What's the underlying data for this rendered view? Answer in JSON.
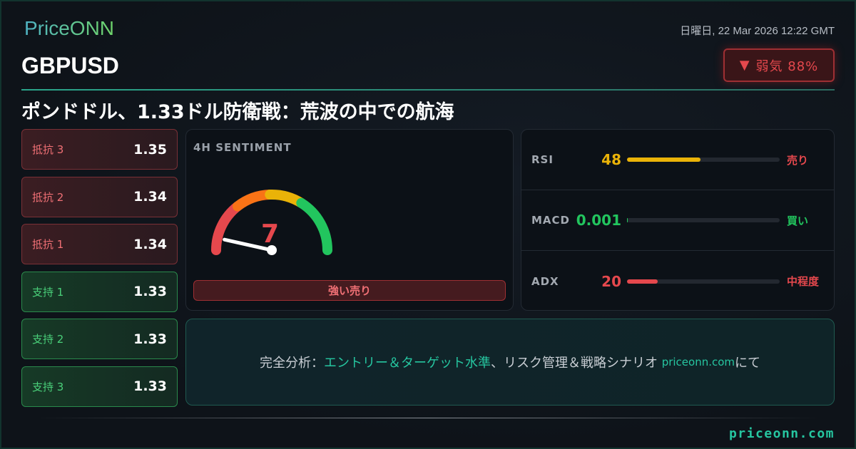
{
  "brand": {
    "logo": "PriceONN",
    "site": "priceonn.com"
  },
  "header": {
    "date": "日曜日, 22 Mar 2026 12:22 GMT",
    "pair": "GBPUSD",
    "badge": {
      "icon": "triangle-down-icon",
      "arrow": "▼",
      "label": "弱気 88%"
    },
    "headline": "ポンドドル、1.33ドル防衛戦：荒波の中での航海"
  },
  "levels": [
    {
      "name": "抵抗 3",
      "value": "1.35",
      "type": "resistance"
    },
    {
      "name": "抵抗 2",
      "value": "1.34",
      "type": "resistance"
    },
    {
      "name": "抵抗 1",
      "value": "1.34",
      "type": "resistance"
    },
    {
      "name": "支持 1",
      "value": "1.33",
      "type": "support"
    },
    {
      "name": "支持 2",
      "value": "1.33",
      "type": "support"
    },
    {
      "name": "支持 3",
      "value": "1.33",
      "type": "support"
    }
  ],
  "sentiment": {
    "title": "4H SENTIMENT",
    "value": "7",
    "score": 7,
    "scale_max": 100,
    "label": "強い売り",
    "colors": [
      "#e5484d",
      "#f97316",
      "#eab308",
      "#22c55e"
    ]
  },
  "indicators": [
    {
      "name": "RSI",
      "value": "48",
      "fill_pct": 48,
      "color": "#eab308",
      "signal": "売り",
      "signal_color": "#e5484d"
    },
    {
      "name": "MACD",
      "value": "0.001",
      "fill_pct": 0.5,
      "color": "#22c55e",
      "signal": "買い",
      "signal_color": "#22c55e"
    },
    {
      "name": "ADX",
      "value": "20",
      "fill_pct": 20,
      "color": "#e5484d",
      "signal": "中程度",
      "signal_color": "#e5484d"
    }
  ],
  "cta": {
    "prefix": "完全分析：",
    "highlight": "エントリー＆ターゲット水準",
    "middle": "、リスク管理＆戦略シナリオ ",
    "link": "priceonn.com",
    "suffix": "にて"
  }
}
